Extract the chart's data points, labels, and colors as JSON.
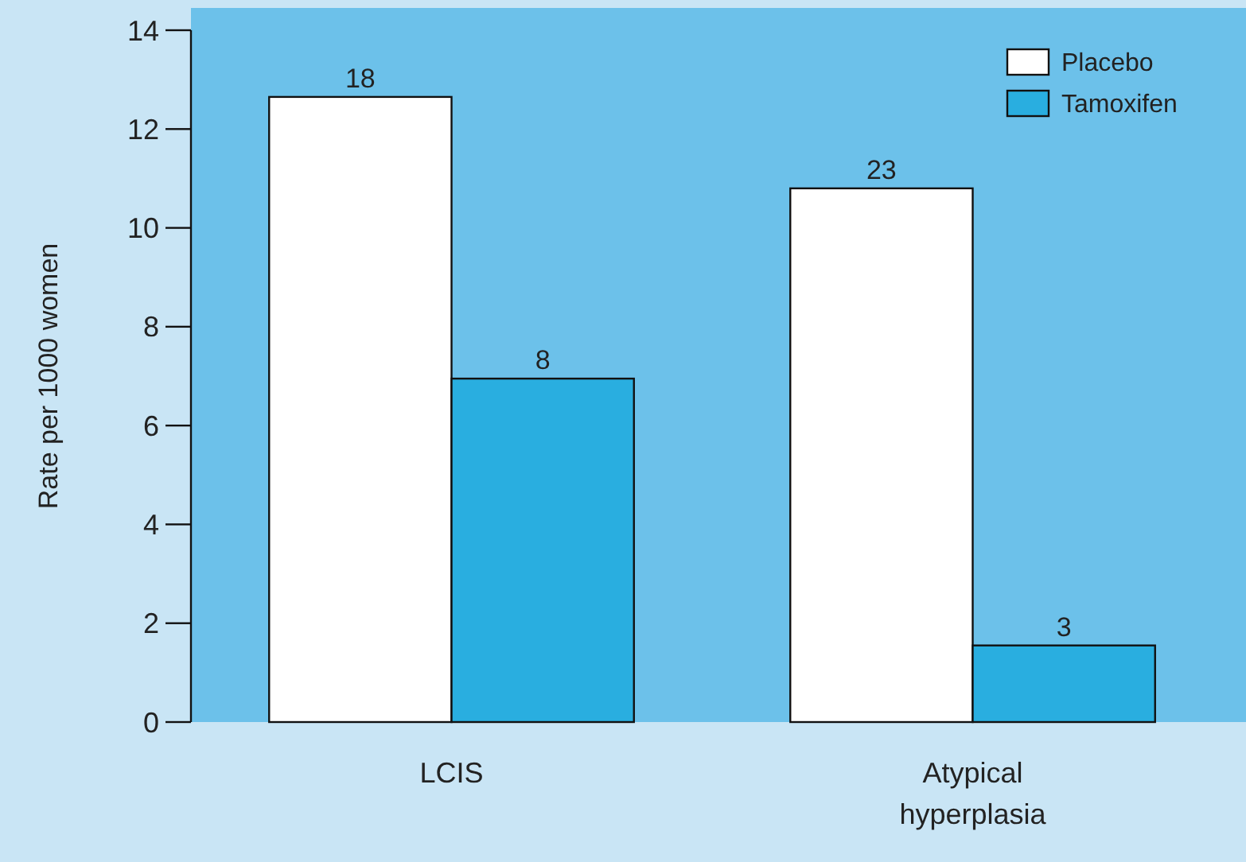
{
  "chart_data": {
    "type": "bar",
    "ylabel": "Rate per 1000 women",
    "categories": [
      "LCIS",
      "Atypical\nhyperplasia"
    ],
    "series": [
      {
        "name": "Placebo",
        "color": "#ffffff",
        "values": [
          12.65,
          10.8
        ]
      },
      {
        "name": "Tamoxifen",
        "color": "#29aee0",
        "values": [
          6.95,
          1.55
        ]
      }
    ],
    "annotations": [
      "18",
      "8",
      "23",
      "3"
    ],
    "ylim": [
      0,
      14
    ],
    "yticks": [
      0,
      2,
      4,
      6,
      8,
      10,
      12,
      14
    ],
    "grid": false,
    "legend": "top right"
  }
}
